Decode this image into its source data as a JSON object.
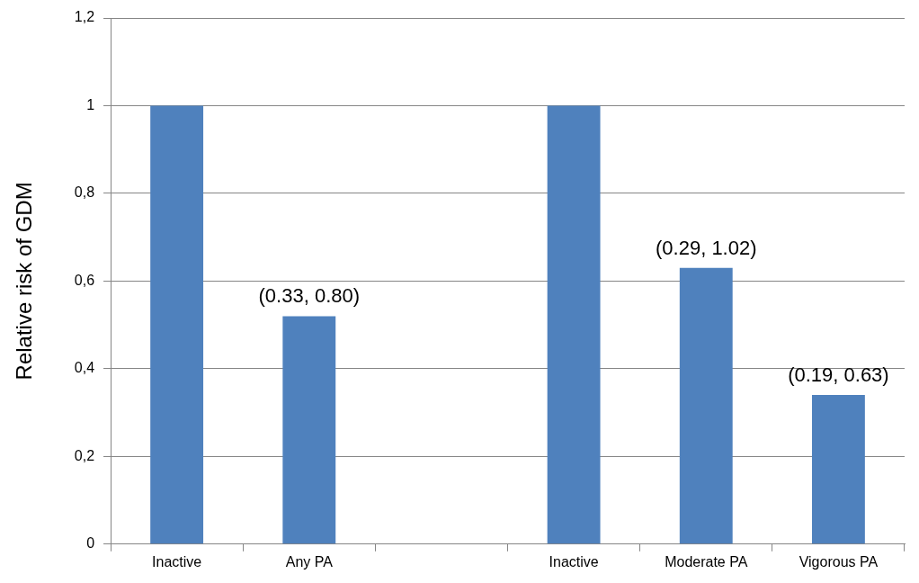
{
  "chart_data": {
    "type": "bar",
    "ylabel": "Relative risk of GDM",
    "categories": [
      "Inactive",
      "Any PA",
      null,
      "Inactive",
      "Moderate PA",
      "Vigorous PA"
    ],
    "values": [
      1,
      0.52,
      null,
      1,
      0.63,
      0.34
    ],
    "color": "#4f81bd",
    "value_labels": [
      null,
      "(0.33, 0.80)",
      null,
      null,
      "(0.29, 1.02)",
      "(0.19, 0.63)"
    ],
    "ylim": [
      0,
      1.2
    ],
    "yticks": [
      0,
      {
        "value": 0.2,
        "label": "0,2"
      },
      {
        "value": 0.4,
        "label": "0,4"
      },
      {
        "value": 0.6,
        "label": "0,6"
      },
      {
        "value": 0.8,
        "label": "0,8"
      },
      1,
      {
        "value": 1.2,
        "label": "1,2"
      }
    ],
    "grid": "y",
    "legend": false
  }
}
